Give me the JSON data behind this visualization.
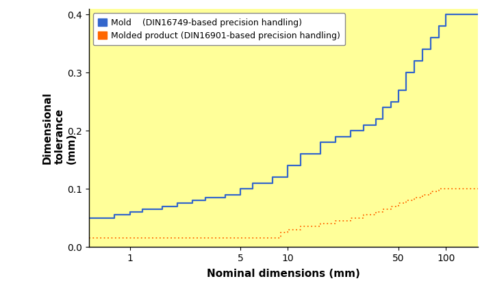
{
  "xlabel": "Nominal dimensions (mm)",
  "ylabel": "Dimensional\ntolerance\n(mm)",
  "bg_color": "#FFFF99",
  "xlim_log": [
    0.55,
    160
  ],
  "ylim": [
    0,
    0.41
  ],
  "xticks": [
    1,
    5,
    10,
    50,
    100
  ],
  "yticks": [
    0,
    0.1,
    0.2,
    0.3,
    0.4
  ],
  "mold_label": "Mold    (DIN16749-based precision handling)",
  "product_label": "Molded product (DIN16901-based precision handling)",
  "mold_color": "#3366CC",
  "product_color": "#FF6600",
  "mold_x": [
    0.55,
    0.8,
    0.8,
    1.0,
    1.0,
    1.2,
    1.2,
    1.6,
    1.6,
    2.0,
    2.0,
    2.5,
    2.5,
    3.0,
    3.0,
    4.0,
    4.0,
    5.0,
    5.0,
    6.0,
    6.0,
    8.0,
    8.0,
    10.0,
    10.0,
    12.0,
    12.0,
    16.0,
    16.0,
    20.0,
    20.0,
    25.0,
    25.0,
    30.0,
    30.0,
    36.0,
    36.0,
    40.0,
    40.0,
    45.0,
    45.0,
    50.0,
    50.0,
    56.0,
    56.0,
    63.0,
    63.0,
    71.0,
    71.0,
    80.0,
    80.0,
    90.0,
    90.0,
    100.0,
    100.0,
    120.0,
    120.0,
    160.0
  ],
  "mold_y": [
    0.05,
    0.05,
    0.055,
    0.055,
    0.06,
    0.06,
    0.065,
    0.065,
    0.07,
    0.07,
    0.075,
    0.075,
    0.08,
    0.08,
    0.085,
    0.085,
    0.09,
    0.09,
    0.1,
    0.1,
    0.11,
    0.11,
    0.12,
    0.12,
    0.14,
    0.14,
    0.16,
    0.16,
    0.18,
    0.18,
    0.19,
    0.19,
    0.2,
    0.2,
    0.21,
    0.21,
    0.22,
    0.22,
    0.24,
    0.24,
    0.25,
    0.25,
    0.27,
    0.27,
    0.3,
    0.3,
    0.32,
    0.32,
    0.34,
    0.34,
    0.36,
    0.36,
    0.38,
    0.38,
    0.4,
    0.4,
    0.4,
    0.4
  ],
  "product_x": [
    0.55,
    9.0,
    9.0,
    10.0,
    10.0,
    12.0,
    12.0,
    16.0,
    16.0,
    20.0,
    20.0,
    25.0,
    25.0,
    30.0,
    30.0,
    36.0,
    36.0,
    40.0,
    40.0,
    45.0,
    45.0,
    50.0,
    50.0,
    56.0,
    56.0,
    63.0,
    63.0,
    71.0,
    71.0,
    80.0,
    80.0,
    90.0,
    90.0,
    100.0,
    100.0,
    120.0,
    120.0,
    160.0
  ],
  "product_y": [
    0.016,
    0.016,
    0.025,
    0.025,
    0.03,
    0.03,
    0.035,
    0.035,
    0.04,
    0.04,
    0.045,
    0.045,
    0.05,
    0.05,
    0.055,
    0.055,
    0.06,
    0.06,
    0.065,
    0.065,
    0.07,
    0.07,
    0.075,
    0.075,
    0.08,
    0.08,
    0.085,
    0.085,
    0.09,
    0.09,
    0.095,
    0.095,
    0.1,
    0.1,
    0.1,
    0.1,
    0.1,
    0.1
  ],
  "fig_width": 7.2,
  "fig_height": 4.3,
  "dpi": 100
}
